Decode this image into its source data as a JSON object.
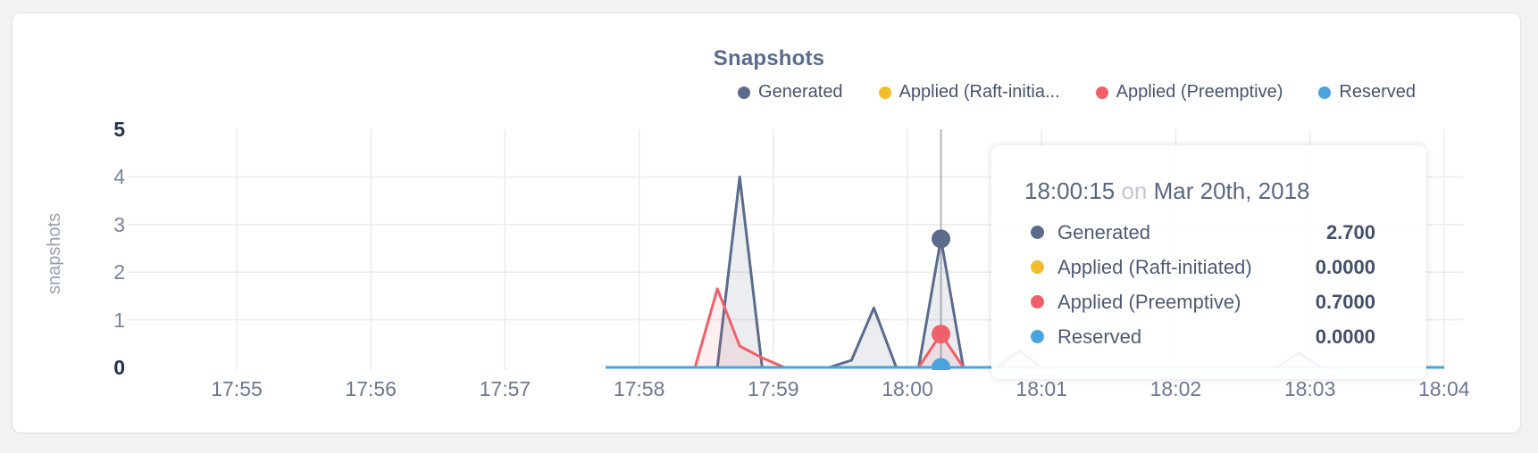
{
  "title": "Snapshots",
  "colors": {
    "generated": "#5b6b8c",
    "raft": "#f2bd2d",
    "preemptive": "#f0606a",
    "reserved": "#4aa3dc",
    "grid": "#ececec",
    "crosshair": "#b3b6bb"
  },
  "legend": {
    "items": [
      {
        "label": "Generated",
        "color": "#5b6b8c"
      },
      {
        "label": "Applied (Raft-initia...",
        "color": "#f2bd2d"
      },
      {
        "label": "Applied (Preemptive)",
        "color": "#f0606a"
      },
      {
        "label": "Reserved",
        "color": "#4aa3dc"
      }
    ]
  },
  "tooltip": {
    "time": "18:00:15",
    "conjunction": "on",
    "date": "Mar 20th, 2018",
    "rows": [
      {
        "label": "Generated",
        "value": "2.700",
        "color": "#5b6b8c"
      },
      {
        "label": "Applied (Raft-initiated)",
        "value": "0.0000",
        "color": "#f2bd2d"
      },
      {
        "label": "Applied (Preemptive)",
        "value": "0.7000",
        "color": "#f0606a"
      },
      {
        "label": "Reserved",
        "value": "0.0000",
        "color": "#4aa3dc"
      }
    ]
  },
  "chart_data": {
    "type": "line",
    "title": "Snapshots",
    "xlabel": "",
    "ylabel": "snapshots",
    "ylim": [
      0,
      5
    ],
    "grid": true,
    "legend_position": "top-right",
    "x_ticks": [
      "17:55",
      "17:56",
      "17:57",
      "17:58",
      "17:59",
      "18:00",
      "18:01",
      "18:02",
      "18:03",
      "18:04"
    ],
    "y_ticks": [
      {
        "value": 0,
        "bold": true
      },
      {
        "value": 1,
        "bold": false
      },
      {
        "value": 2,
        "bold": false
      },
      {
        "value": 3,
        "bold": false
      },
      {
        "value": 4,
        "bold": false
      },
      {
        "value": 5,
        "bold": true
      }
    ],
    "highlight": {
      "time": "18:00:15",
      "date": "Mar 20th, 2018"
    },
    "series": [
      {
        "name": "Applied (Raft-initiated)",
        "color": "#f2bd2d",
        "fill": "none",
        "highlight_value": 0.0,
        "points": [
          [
            "17:57:45",
            0
          ],
          [
            "18:04:00",
            0
          ]
        ]
      },
      {
        "name": "Generated",
        "color": "#5b6b8c",
        "fill": "rgba(91,107,140,0.12)",
        "highlight_value": 2.7,
        "points": [
          [
            "17:57:45",
            0
          ],
          [
            "17:58:25",
            0
          ],
          [
            "17:58:35",
            0
          ],
          [
            "17:58:45",
            4.0
          ],
          [
            "17:58:55",
            0
          ],
          [
            "17:59:25",
            0
          ],
          [
            "17:59:35",
            0.15
          ],
          [
            "17:59:45",
            1.25
          ],
          [
            "17:59:55",
            0
          ],
          [
            "18:00:05",
            0
          ],
          [
            "18:00:15",
            2.7
          ],
          [
            "18:00:25",
            0
          ],
          [
            "18:00:40",
            0
          ],
          [
            "18:00:50",
            0.35
          ],
          [
            "18:01:00",
            0
          ],
          [
            "18:02:45",
            0
          ],
          [
            "18:02:55",
            0.3
          ],
          [
            "18:03:05",
            0
          ],
          [
            "18:04:00",
            0
          ]
        ]
      },
      {
        "name": "Applied (Preemptive)",
        "color": "#f0606a",
        "fill": "rgba(240,96,106,0.10)",
        "highlight_value": 0.7,
        "points": [
          [
            "17:57:45",
            0
          ],
          [
            "17:58:25",
            0
          ],
          [
            "17:58:35",
            1.65
          ],
          [
            "17:58:45",
            0.45
          ],
          [
            "17:58:55",
            0.2
          ],
          [
            "17:59:05",
            0
          ],
          [
            "18:00:05",
            0
          ],
          [
            "18:00:15",
            0.7
          ],
          [
            "18:00:25",
            0
          ],
          [
            "18:04:00",
            0
          ]
        ]
      },
      {
        "name": "Reserved",
        "color": "#4aa3dc",
        "fill": "none",
        "highlight_value": 0.0,
        "points": [
          [
            "17:57:45",
            0
          ],
          [
            "18:04:00",
            0
          ]
        ]
      }
    ]
  }
}
